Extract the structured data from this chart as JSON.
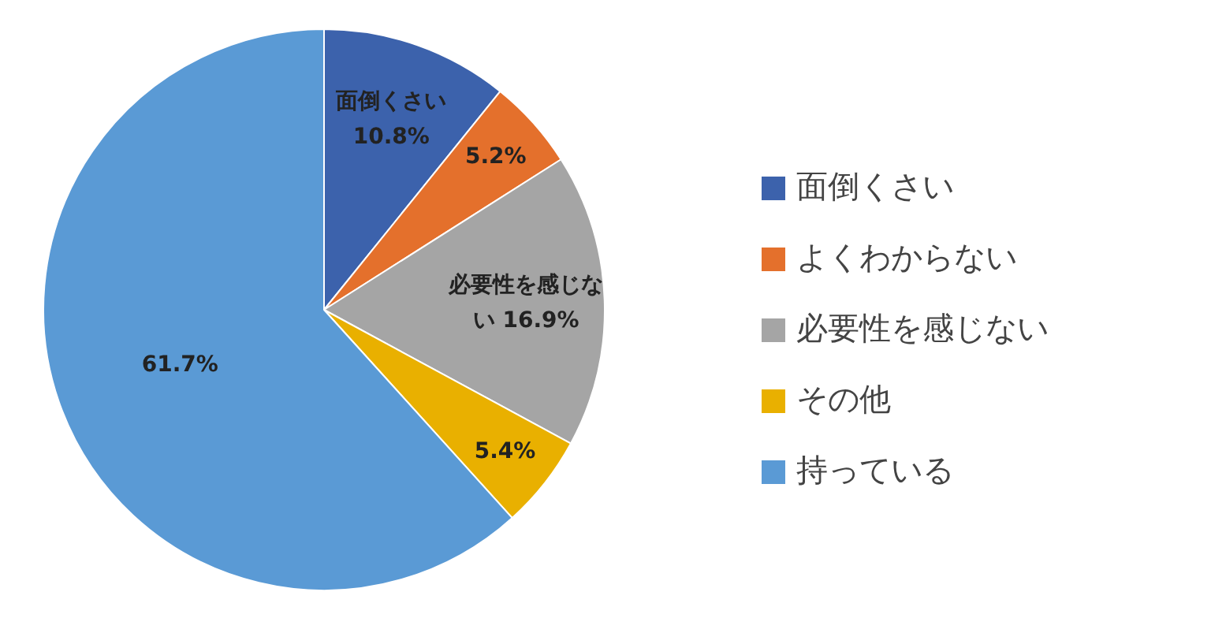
{
  "chart_data": {
    "type": "pie",
    "categories": [
      "面倒くさい",
      "よくわからない",
      "必要性を感じない",
      "その他",
      "持っている"
    ],
    "values": [
      10.8,
      5.2,
      16.9,
      5.4,
      61.7
    ],
    "colors": [
      "#3c62ac",
      "#e4702c",
      "#a5a5a5",
      "#e9b000",
      "#5a9ad5"
    ],
    "value_labels": [
      "面倒くさい 10.8%",
      "5.2%",
      "必要性を感じない 16.9%",
      "5.4%",
      "61.7%"
    ],
    "legend": "right"
  }
}
